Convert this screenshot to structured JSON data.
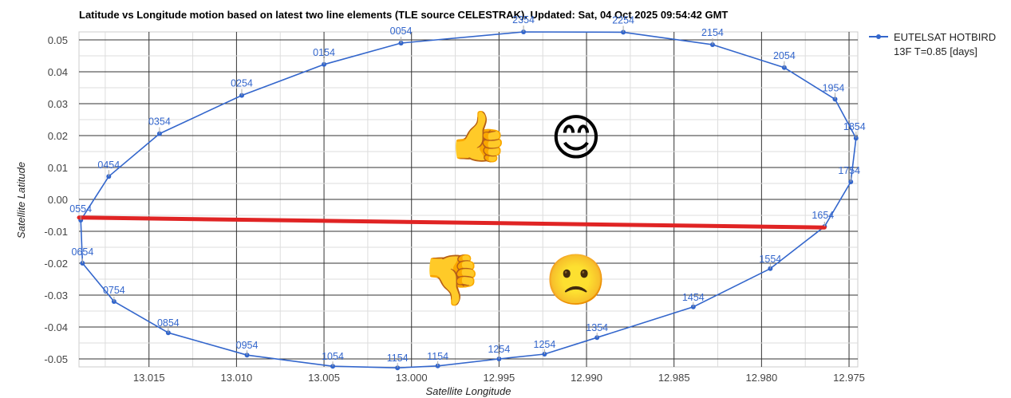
{
  "chart_data": {
    "type": "line",
    "title": "Latitude vs Longitude motion based on latest two line elements (TLE source CELESTRAK). Updated: Sat, 04 Oct 2025 09:54:42 GMT",
    "xlabel": "Satellite Longitude",
    "ylabel": "Satellite Latitude",
    "xlim": [
      13.019,
      12.9745
    ],
    "ylim": [
      -0.0525,
      0.0525
    ],
    "x_reversed": true,
    "x_ticks": [
      "13.015",
      "13.010",
      "13.005",
      "13.000",
      "12.995",
      "12.990",
      "12.985",
      "12.980",
      "12.975"
    ],
    "y_ticks": [
      "0.05",
      "0.04",
      "0.03",
      "0.02",
      "0.01",
      "0.00",
      "-0.01",
      "-0.02",
      "-0.03",
      "-0.04",
      "-0.05"
    ],
    "grid": true,
    "legend": {
      "position": "right",
      "entries": [
        {
          "line1": "EUTELSAT HOTBIRD",
          "line2": "13F T=0.85 [days]"
        }
      ]
    },
    "series": [
      {
        "name": "EUTELSAT HOTBIRD 13F T=0.85 [days]",
        "color": "#3366cc",
        "points": [
          {
            "x": 13.0006,
            "y": 0.049,
            "label": "0054"
          },
          {
            "x": 13.005,
            "y": 0.0423,
            "label": "0154"
          },
          {
            "x": 13.0097,
            "y": 0.0326,
            "label": "0254"
          },
          {
            "x": 13.0144,
            "y": 0.0206,
            "label": "0354"
          },
          {
            "x": 13.0173,
            "y": 0.0072,
            "label": "0454"
          },
          {
            "x": 13.0189,
            "y": -0.0065,
            "label": "0554"
          },
          {
            "x": 13.0188,
            "y": -0.02,
            "label": "0654"
          },
          {
            "x": 13.017,
            "y": -0.032,
            "label": "0754"
          },
          {
            "x": 13.0139,
            "y": -0.0418,
            "label": "0854"
          },
          {
            "x": 13.0094,
            "y": -0.0488,
            "label": "0954"
          },
          {
            "x": 13.0045,
            "y": -0.0523,
            "label": "1054"
          },
          {
            "x": 13.0008,
            "y": -0.0528,
            "label": "1154"
          },
          {
            "x": 12.9985,
            "y": -0.0522,
            "label": "1154"
          },
          {
            "x": 12.995,
            "y": -0.05,
            "label": "1254"
          },
          {
            "x": 12.9924,
            "y": -0.0485,
            "label": "1254"
          },
          {
            "x": 12.9894,
            "y": -0.0433,
            "label": "1354"
          },
          {
            "x": 12.9839,
            "y": -0.0337,
            "label": "1454"
          },
          {
            "x": 12.9795,
            "y": -0.0217,
            "label": "1554"
          },
          {
            "x": 12.9764,
            "y": -0.0085,
            "label": "1654"
          },
          {
            "x": 12.9749,
            "y": 0.0055,
            "label": "1754"
          },
          {
            "x": 12.9746,
            "y": 0.0192,
            "label": "1854"
          },
          {
            "x": 12.9758,
            "y": 0.0314,
            "label": "1954"
          },
          {
            "x": 12.9787,
            "y": 0.0413,
            "label": "2054"
          },
          {
            "x": 12.9828,
            "y": 0.0485,
            "label": "2154"
          },
          {
            "x": 12.9879,
            "y": 0.0524,
            "label": "2254"
          },
          {
            "x": 12.9936,
            "y": 0.0525,
            "label": "2354"
          },
          {
            "x": 13.0006,
            "y": 0.049,
            "label": ""
          }
        ]
      }
    ],
    "annotations": {
      "red_line": {
        "x1": 13.019,
        "y1": -0.0057,
        "x2": 12.9764,
        "y2": -0.0088,
        "color": "#e02424"
      },
      "emojis": [
        {
          "glyph": "👍",
          "name": "thumbs-up-icon",
          "x": 12.9962,
          "y": 0.02
        },
        {
          "glyph": "😊",
          "name": "smiling-face-icon",
          "x": 12.9906,
          "y": 0.0195
        },
        {
          "glyph": "👎",
          "name": "thumbs-down-icon",
          "x": 12.9977,
          "y": -0.025
        },
        {
          "glyph": "🙁",
          "name": "frowning-face-icon",
          "x": 12.9906,
          "y": -0.025
        }
      ]
    }
  }
}
